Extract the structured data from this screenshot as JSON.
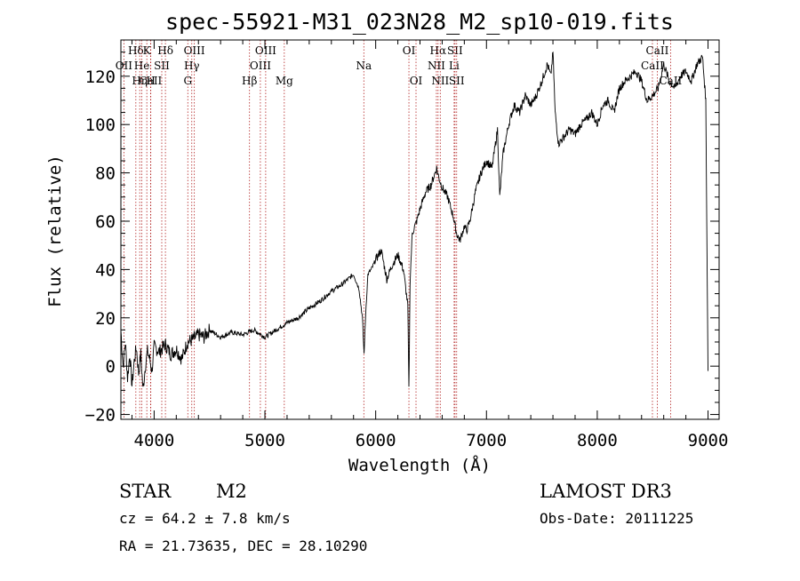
{
  "chart_data": {
    "type": "line",
    "title": "spec-55921-M31_023N28_M2_sp10-019.fits",
    "xlabel": "Wavelength (Å)",
    "ylabel": "Flux (relative)",
    "xlim": [
      3700,
      9100
    ],
    "ylim": [
      -22,
      135
    ],
    "xticks": [
      4000,
      5000,
      6000,
      7000,
      8000,
      9000
    ],
    "yticks": [
      -20,
      0,
      20,
      40,
      60,
      80,
      100,
      120
    ],
    "grid": false,
    "line_color": "#000000",
    "marker_color": "#b22222",
    "series": [
      {
        "name": "flux",
        "x": [
          3700,
          3720,
          3740,
          3760,
          3780,
          3800,
          3820,
          3840,
          3860,
          3880,
          3900,
          3920,
          3940,
          3960,
          3980,
          4000,
          4050,
          4100,
          4150,
          4200,
          4250,
          4300,
          4350,
          4400,
          4450,
          4500,
          4600,
          4700,
          4800,
          4900,
          5000,
          5100,
          5200,
          5300,
          5400,
          5500,
          5600,
          5700,
          5750,
          5800,
          5850,
          5880,
          5895,
          5910,
          5930,
          5960,
          6000,
          6050,
          6100,
          6150,
          6200,
          6250,
          6290,
          6300,
          6310,
          6330,
          6370,
          6400,
          6450,
          6500,
          6550,
          6570,
          6600,
          6650,
          6700,
          6730,
          6760,
          6800,
          6820,
          6850,
          6900,
          6950,
          7000,
          7050,
          7100,
          7120,
          7150,
          7200,
          7250,
          7300,
          7350,
          7400,
          7450,
          7500,
          7550,
          7580,
          7600,
          7620,
          7650,
          7700,
          7750,
          7800,
          7850,
          7900,
          7950,
          8000,
          8050,
          8100,
          8150,
          8200,
          8250,
          8300,
          8350,
          8400,
          8450,
          8500,
          8550,
          8600,
          8650,
          8700,
          8750,
          8800,
          8850,
          8900,
          8950,
          8980,
          9000
        ],
        "y": [
          15,
          0,
          10,
          -5,
          5,
          -8,
          2,
          8,
          -3,
          5,
          -10,
          0,
          6,
          3,
          -2,
          8,
          6,
          9,
          5,
          7,
          3,
          10,
          11,
          13,
          12,
          15,
          12,
          14,
          13,
          15,
          12,
          15,
          18,
          20,
          24,
          27,
          31,
          34,
          36,
          38,
          32,
          20,
          5,
          22,
          38,
          40,
          44,
          48,
          36,
          42,
          46,
          40,
          25,
          -10,
          35,
          55,
          60,
          65,
          72,
          75,
          82,
          78,
          74,
          70,
          62,
          55,
          52,
          58,
          56,
          60,
          72,
          80,
          85,
          82,
          98,
          70,
          88,
          100,
          108,
          105,
          112,
          108,
          112,
          118,
          125,
          120,
          130,
          105,
          92,
          95,
          98,
          96,
          100,
          102,
          105,
          100,
          108,
          110,
          105,
          115,
          118,
          120,
          122,
          118,
          110,
          112,
          115,
          125,
          118,
          115,
          120,
          122,
          118,
          125,
          128,
          110,
          -2
        ]
      }
    ],
    "line_markers": [
      {
        "label": "Hδ",
        "x": 3835,
        "row": 1
      },
      {
        "label": "OII",
        "x": 3727,
        "row": 2
      },
      {
        "label": "CaII",
        "x": 3968,
        "row": 3
      },
      {
        "label": "K",
        "x": 3934,
        "row": 1
      },
      {
        "label": "He",
        "x": 3889,
        "row": 2
      },
      {
        "label": "Hη",
        "x": 3870,
        "row": 3
      },
      {
        "label": "SII",
        "x": 4069,
        "row": 2
      },
      {
        "label": "H",
        "x": 3970,
        "row": 3
      },
      {
        "label": "Hδ",
        "x": 4102,
        "row": 1
      },
      {
        "label": "OIII",
        "x": 4363,
        "row": 1
      },
      {
        "label": "Hγ",
        "x": 4340,
        "row": 2
      },
      {
        "label": "G",
        "x": 4304,
        "row": 3
      },
      {
        "label": "Hβ",
        "x": 4861,
        "row": 3
      },
      {
        "label": "OIII",
        "x": 5007,
        "row": 1
      },
      {
        "label": "OIII",
        "x": 4959,
        "row": 2
      },
      {
        "label": "Mg",
        "x": 5175,
        "row": 3
      },
      {
        "label": "Na",
        "x": 5893,
        "row": 2
      },
      {
        "label": "OI",
        "x": 6300,
        "row": 1
      },
      {
        "label": "OI",
        "x": 6364,
        "row": 3
      },
      {
        "label": "Hα",
        "x": 6563,
        "row": 1
      },
      {
        "label": "NII",
        "x": 6548,
        "row": 2
      },
      {
        "label": "NII",
        "x": 6583,
        "row": 3
      },
      {
        "label": "SII",
        "x": 6716,
        "row": 1
      },
      {
        "label": "Li",
        "x": 6708,
        "row": 2
      },
      {
        "label": "SII",
        "x": 6731,
        "row": 3
      },
      {
        "label": "CaII",
        "x": 8542,
        "row": 1
      },
      {
        "label": "CaII",
        "x": 8498,
        "row": 2
      },
      {
        "label": "CaII",
        "x": 8662,
        "row": 3
      }
    ]
  },
  "info": {
    "class": "STAR",
    "subclass": "M2",
    "survey": "LAMOST DR3",
    "redshift": "cz = 64.2 ± 7.8 km/s",
    "obs_date": "Obs-Date: 20111225",
    "coords": "RA =  21.73635, DEC =  28.10290"
  }
}
